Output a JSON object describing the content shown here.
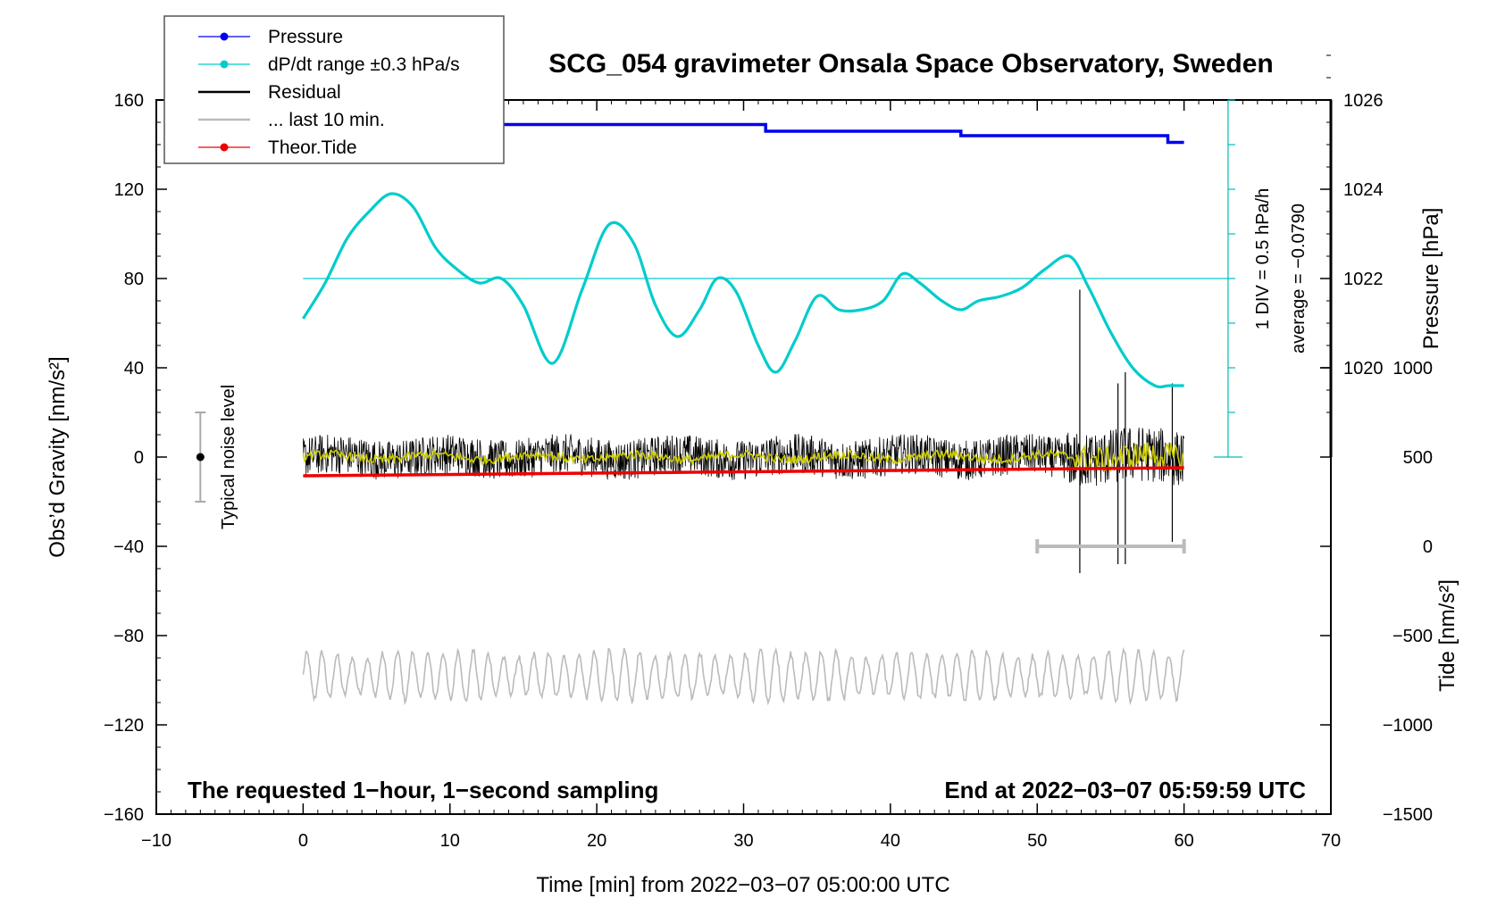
{
  "chart_data": {
    "type": "line",
    "title": "SCG_054 gravimeter Onsala Space Observatory, Sweden",
    "xlabel": "Time [min] from 2022−03−07 05:00:00 UTC",
    "ylabel_left": "Obs’d Gravity [nm/s²]",
    "ylabel_right_top": "Pressure [hPa]",
    "ylabel_right_bottom": "Tide [nm/s²]",
    "xlim": [
      -10,
      70
    ],
    "ylim_left": [
      -160,
      160
    ],
    "x_ticks": [
      -10,
      0,
      10,
      20,
      30,
      40,
      50,
      60,
      70
    ],
    "x_tick_labels": [
      "−10",
      "0",
      "10",
      "20",
      "30",
      "40",
      "50",
      "60",
      "70"
    ],
    "y_left_ticks": [
      160,
      120,
      80,
      40,
      0,
      -40,
      -80,
      -120,
      -160
    ],
    "y_left_tick_labels": [
      "160",
      "120",
      "80",
      "40",
      "0",
      "−40",
      "−80",
      "−120",
      "−160"
    ],
    "pressure_axis": {
      "ticks": [
        1026,
        1024,
        1022,
        1020
      ],
      "tick_labels": [
        "1026",
        "1024",
        "1022",
        "1020"
      ],
      "value_at_left0": 1018,
      "units_per_left": 0.05
    },
    "tide_axis": {
      "ticks": [
        1000,
        500,
        0,
        -500,
        -1000,
        -1500
      ],
      "tick_labels": [
        "1000",
        "500",
        "0",
        "−500",
        "−1000",
        "−1500"
      ],
      "value_at_left_minus160": -1500,
      "units_per_left": 12.5
    },
    "annotations": {
      "div_label": "1 DIV = 0.5 hPa/h",
      "average_label": "average = −0.0790",
      "noise_label": "Typical noise level",
      "bottom_left_note": "The requested 1−hour, 1−second sampling",
      "bottom_right_note": "End at 2022−03−07 05:59:59 UTC"
    },
    "legend": {
      "position": "top-left, outside plot",
      "entries": [
        {
          "label": "Pressure",
          "color": "#0000ee",
          "marker": true
        },
        {
          "label": "dP/dt range ±0.3 hPa/s",
          "color": "#00cccc",
          "marker": true
        },
        {
          "label": "Residual",
          "color": "#000000",
          "marker": false
        },
        {
          "label": "... last 10 min.",
          "color": "#bbbbbb",
          "marker": false
        },
        {
          "label": "Theor.Tide",
          "color": "#ee0000",
          "marker": true
        }
      ]
    },
    "dpdt_reference_level": 80,
    "dpdt_scale_bar": {
      "x": 63,
      "from": 0,
      "to": 160
    },
    "noise_bar": {
      "x": -7,
      "center": 0,
      "low": -20,
      "high": 20
    },
    "last10_bar": {
      "x_from": 50,
      "x_to": 60,
      "y": -40
    },
    "series": [
      {
        "name": "Pressure",
        "color": "#0000ee",
        "axis": "pressure",
        "x": [
          0,
          4.2,
          4.2,
          31.5,
          31.5,
          44.8,
          44.8,
          58.9,
          58.9,
          60
        ],
        "values": [
          1025.4,
          1025.4,
          1025.45,
          1025.45,
          1025.3,
          1025.3,
          1025.2,
          1025.2,
          1025.05,
          1025.05
        ]
      },
      {
        "name": "dP/dt range ±0.3 hPa/s",
        "color": "#00cccc",
        "axis": "left",
        "x": [
          0,
          1.5,
          3,
          4.5,
          6,
          7.5,
          9,
          10.5,
          12,
          13.5,
          15,
          17,
          19,
          20.8,
          22.5,
          24,
          25.5,
          27,
          28.2,
          29.5,
          31,
          32.2,
          33.5,
          35,
          36.5,
          38,
          39.5,
          40.8,
          42,
          43.5,
          44.8,
          46,
          47.5,
          49,
          50.5,
          52.2,
          53.5,
          55,
          56.5,
          58,
          59,
          60
        ],
        "values": [
          62,
          78,
          98,
          110,
          118,
          112,
          94,
          84,
          78,
          80,
          68,
          42,
          75,
          104,
          96,
          68,
          54,
          66,
          80,
          74,
          50,
          38,
          52,
          72,
          66,
          66,
          70,
          82,
          78,
          70,
          66,
          70,
          72,
          76,
          84,
          90,
          76,
          56,
          40,
          32,
          32,
          32
        ]
      },
      {
        "name": "Residual",
        "color": "#000000",
        "axis": "left",
        "generated": {
          "amplitude": 9,
          "bursts": [
            [
              52.9,
              75,
              -52
            ],
            [
              55.5,
              33,
              -48
            ],
            [
              56.0,
              38,
              -48
            ],
            [
              59.2,
              33,
              -38
            ]
          ]
        }
      },
      {
        "name": "Residual smoothed",
        "color": "#cccc00",
        "axis": "left",
        "generated": {
          "amplitude": 2
        }
      },
      {
        "name": "... last 10 min.",
        "color": "#bbbbbb",
        "axis": "left",
        "x": [
          0,
          60
        ],
        "center": -98,
        "amplitude": 12
      },
      {
        "name": "Theor.Tide",
        "color": "#ee0000",
        "axis": "tide",
        "x": [
          0,
          60
        ],
        "values": [
          395,
          440
        ]
      }
    ]
  }
}
